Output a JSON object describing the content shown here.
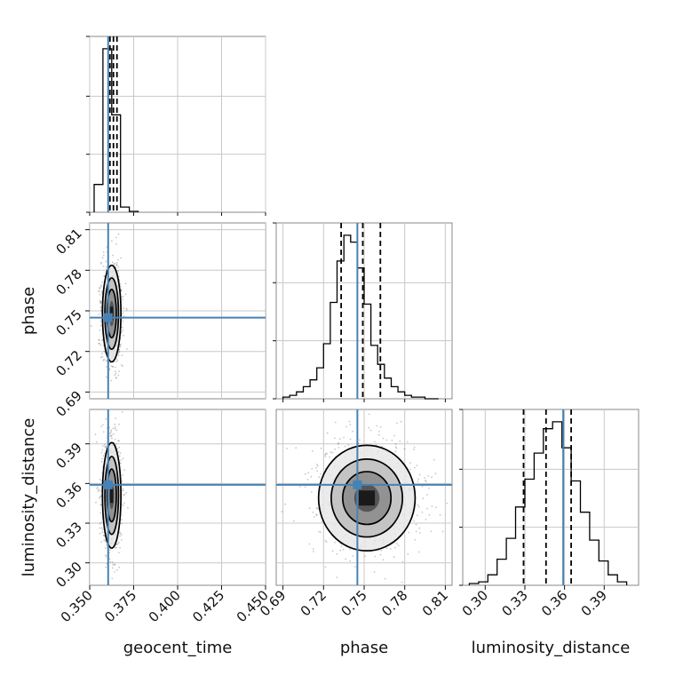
{
  "chart_data": {
    "type": "corner",
    "parameters": [
      "geocent_time",
      "phase",
      "luminosity_distance"
    ],
    "axis_labels": {
      "geocent_time": "geocent_time",
      "phase": "phase",
      "luminosity_distance": "luminosity_distance"
    },
    "ranges": {
      "geocent_time": [
        0.35,
        0.45
      ],
      "phase": [
        0.685,
        0.815
      ],
      "luminosity_distance": [
        0.283,
        0.416
      ]
    },
    "tick_labels": {
      "geocent_time": [
        "0.350",
        "0.375",
        "0.400",
        "0.425",
        "0.450"
      ],
      "phase": [
        "0.69",
        "0.72",
        "0.75",
        "0.78",
        "0.81"
      ],
      "luminosity_distance": [
        "0.30",
        "0.33",
        "0.36",
        "0.39"
      ]
    },
    "truths": {
      "geocent_time": 0.3605,
      "phase": 0.745,
      "luminosity_distance": 0.359
    },
    "quantiles": {
      "geocent_time": [
        0.3615,
        0.3635,
        0.3655
      ],
      "phase": [
        0.733,
        0.749,
        0.762
      ],
      "luminosity_distance": [
        0.329,
        0.346,
        0.365
      ]
    },
    "histograms": {
      "geocent_time": {
        "edges": [
          0.3525,
          0.3575,
          0.3625,
          0.3675,
          0.3725,
          0.3775
        ],
        "counts": [
          0.16,
          0.94,
          0.56,
          0.03,
          0.005
        ]
      },
      "phase": {
        "edges": [
          0.69,
          0.695,
          0.7,
          0.705,
          0.71,
          0.715,
          0.72,
          0.725,
          0.73,
          0.735,
          0.74,
          0.745,
          0.75,
          0.755,
          0.76,
          0.765,
          0.77,
          0.775,
          0.78,
          0.785,
          0.79,
          0.795,
          0.8,
          0.805
        ],
        "counts": [
          0.01,
          0.02,
          0.04,
          0.07,
          0.11,
          0.18,
          0.32,
          0.56,
          0.8,
          0.95,
          0.91,
          0.76,
          0.55,
          0.31,
          0.2,
          0.12,
          0.07,
          0.04,
          0.02,
          0.01,
          0.01,
          0.0,
          0.0
        ]
      },
      "luminosity_distance": {
        "edges": [
          0.288,
          0.295,
          0.302,
          0.309,
          0.316,
          0.323,
          0.33,
          0.337,
          0.344,
          0.351,
          0.358,
          0.365,
          0.372,
          0.379,
          0.386,
          0.393,
          0.4,
          0.407
        ],
        "counts": [
          0.01,
          0.02,
          0.06,
          0.15,
          0.27,
          0.45,
          0.61,
          0.76,
          0.9,
          0.94,
          0.79,
          0.6,
          0.42,
          0.26,
          0.14,
          0.06,
          0.02
        ]
      }
    },
    "pairs": [
      {
        "x": "geocent_time",
        "y": "phase",
        "center": [
          0.3625,
          0.748
        ],
        "sigma": [
          0.0025,
          0.017
        ]
      },
      {
        "x": "geocent_time",
        "y": "luminosity_distance",
        "center": [
          0.3625,
          0.351
        ],
        "sigma": [
          0.0025,
          0.019
        ]
      },
      {
        "x": "phase",
        "y": "luminosity_distance",
        "center": [
          0.752,
          0.349
        ],
        "sigma": [
          0.017,
          0.019
        ]
      }
    ],
    "grid": true,
    "colors": {
      "truth": "#4682b4",
      "hist": "#000000",
      "grid": "#c8c8c8"
    }
  }
}
